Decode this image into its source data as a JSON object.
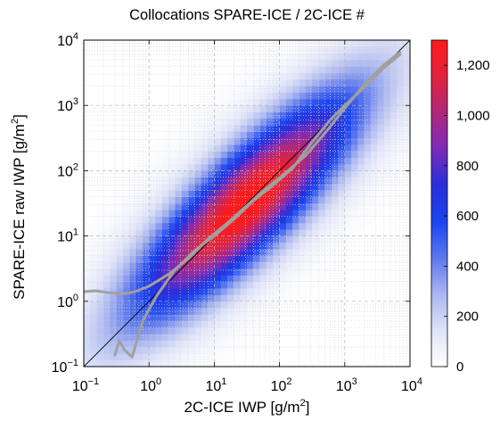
{
  "chart_data": {
    "type": "heatmap",
    "title": "Collocations SPARE-ICE / 2C-ICE #",
    "xlabel": {
      "text": "2C-ICE IWP [g/m",
      "sup": "2",
      "end": "]"
    },
    "ylabel": {
      "text": "SPARE-ICE raw IWP [g/m",
      "sup": "2",
      "end": "]"
    },
    "x_scale": "log",
    "y_scale": "log",
    "xlim": [
      0.1,
      10000
    ],
    "ylim": [
      0.1,
      10000
    ],
    "x_ticks": [
      {
        "base": "10",
        "exp": "−1",
        "value": 0.1
      },
      {
        "base": "10",
        "exp": "0",
        "value": 1
      },
      {
        "base": "10",
        "exp": "1",
        "value": 10
      },
      {
        "base": "10",
        "exp": "2",
        "value": 100
      },
      {
        "base": "10",
        "exp": "3",
        "value": 1000
      },
      {
        "base": "10",
        "exp": "4",
        "value": 10000
      }
    ],
    "y_ticks": [
      {
        "base": "10",
        "exp": "−1",
        "value": 0.1
      },
      {
        "base": "10",
        "exp": "0",
        "value": 1
      },
      {
        "base": "10",
        "exp": "1",
        "value": 10
      },
      {
        "base": "10",
        "exp": "2",
        "value": 100
      },
      {
        "base": "10",
        "exp": "3",
        "value": 1000
      },
      {
        "base": "10",
        "exp": "4",
        "value": 10000
      }
    ],
    "grid": true,
    "colorbar": {
      "min": 0,
      "max": 1300,
      "ticks": [
        {
          "value": 0,
          "label": "0"
        },
        {
          "value": 200,
          "label": "200"
        },
        {
          "value": 400,
          "label": "400"
        },
        {
          "value": 600,
          "label": "600"
        },
        {
          "value": 800,
          "label": "800"
        },
        {
          "value": 1000,
          "label": "1,000"
        },
        {
          "value": 1200,
          "label": "1,200"
        }
      ],
      "colors": [
        "#ffffff",
        "#dfe3f8",
        "#aab6f0",
        "#5c78ee",
        "#1a44f0",
        "#2a2ed8",
        "#7a2cb8",
        "#b0287c",
        "#e2223c",
        "#ff1a1a"
      ]
    },
    "density_model": {
      "peak_count": 1280,
      "peak_x": 30,
      "peak_y": 30,
      "spread_along_decades": 1.15,
      "spread_across_decades": 0.33,
      "bin_width_decades": 0.1
    },
    "series": [
      {
        "name": "",
        "type": "line",
        "color": "#000000",
        "x": [
          0.1,
          10000
        ],
        "y": [
          0.1,
          10000
        ]
      },
      {
        "name": "",
        "type": "line",
        "color": "#a0a0a0",
        "x": [
          0.1,
          0.15,
          0.25,
          0.4,
          0.6,
          1,
          2,
          4,
          8,
          15,
          30,
          60,
          120,
          250,
          500,
          1000,
          2000,
          4000,
          7000
        ],
        "y": [
          1.4,
          1.45,
          1.35,
          1.3,
          1.4,
          1.7,
          2.6,
          4.5,
          9,
          15,
          28,
          52,
          90,
          170,
          380,
          900,
          2100,
          4200,
          6500
        ]
      },
      {
        "name": "",
        "type": "line",
        "color": "#a0a0a0",
        "x": [
          0.3,
          0.35,
          0.42,
          0.55,
          0.8,
          1.3,
          2.5,
          5,
          10,
          20,
          40,
          80,
          160,
          320,
          600,
          1000,
          2000,
          4000,
          7000
        ],
        "y": [
          0.15,
          0.25,
          0.18,
          0.14,
          0.5,
          1.2,
          3,
          6,
          10,
          18,
          35,
          60,
          110,
          280,
          600,
          1000,
          1900,
          3800,
          6000
        ]
      }
    ]
  }
}
